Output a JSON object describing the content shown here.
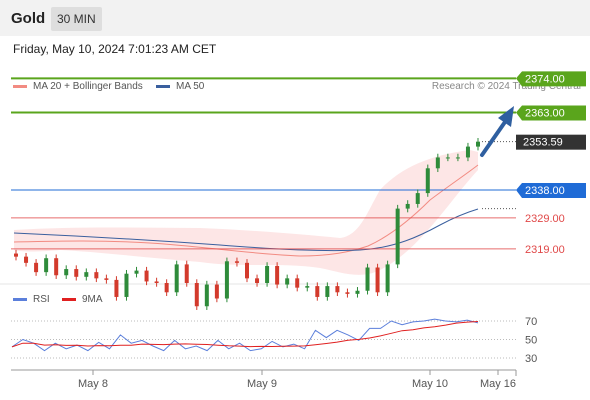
{
  "header": {
    "symbol": "Gold",
    "timeframe": "30 MIN"
  },
  "datetime": "Friday, May 10, 2024 7:01:23 AM CET",
  "credit": "Research © 2024 Trading Central",
  "legend": {
    "ma20": {
      "label": "MA 20 + Bollinger Bands",
      "color": "#f28b82"
    },
    "ma50": {
      "label": "MA 50",
      "color": "#3a5f9e"
    },
    "rsi": {
      "label": "RSI",
      "color": "#5b7fdb"
    },
    "rsi_ma": {
      "label": "9MA",
      "color": "#e02020"
    }
  },
  "levels": [
    {
      "value": 2374.0,
      "label": "2374.00",
      "kind": "resistance",
      "color": "#5aa51c"
    },
    {
      "value": 2363.0,
      "label": "2363.00",
      "kind": "resistance",
      "color": "#5aa51c"
    },
    {
      "value": 2353.59,
      "label": "2353.59",
      "kind": "last",
      "color": "#333333"
    },
    {
      "value": 2338.0,
      "label": "2338.00",
      "kind": "pivot",
      "color": "#1f6bd6"
    },
    {
      "value": 2329.0,
      "label": "2329.00",
      "kind": "support",
      "color": "#e04848"
    },
    {
      "value": 2319.0,
      "label": "2319.00",
      "kind": "support",
      "color": "#e04848"
    }
  ],
  "x_labels": [
    "May 8",
    "May 9",
    "May 10",
    "May 16"
  ],
  "rsi_levels": [
    "70",
    "50",
    "30"
  ],
  "chart_data": {
    "type": "line",
    "title": "Gold 30 MIN",
    "xlabel": "",
    "ylabel": "",
    "ylim": [
      2300,
      2380
    ],
    "x": [
      "May 8",
      "May 9",
      "May 10",
      "May 16"
    ],
    "series": [
      {
        "name": "MA 20 + Bollinger Bands"
      },
      {
        "name": "MA 50"
      }
    ],
    "price_close_approx": [
      2316.5,
      2314.5,
      2311.5,
      2316.0,
      2310.5,
      2312.5,
      2310.0,
      2311.5,
      2309.5,
      2309.0,
      2303.5,
      2311.0,
      2312.0,
      2308.5,
      2308.0,
      2305.0,
      2314.0,
      2308.0,
      2300.5,
      2307.5,
      2303.0,
      2315.0,
      2314.5,
      2309.5,
      2308.0,
      2313.5,
      2307.5,
      2309.5,
      2306.5,
      2307.0,
      2303.5,
      2307.0,
      2305.0,
      2304.5,
      2305.5,
      2313.0,
      2305.0,
      2314.0,
      2332.0,
      2333.5,
      2337.0,
      2345.0,
      2348.5,
      2348.5,
      2348.5,
      2352.0,
      2353.59
    ],
    "rsi_approx": [
      42,
      50,
      46,
      38,
      46,
      40,
      44,
      38,
      47,
      40,
      55,
      46,
      49,
      43,
      38,
      49,
      40,
      43,
      38,
      49,
      40,
      46,
      38,
      40,
      48,
      42,
      45,
      40,
      60,
      52,
      60,
      55,
      49,
      62,
      62,
      70,
      66,
      69,
      70,
      72,
      70,
      69,
      71,
      68
    ]
  }
}
